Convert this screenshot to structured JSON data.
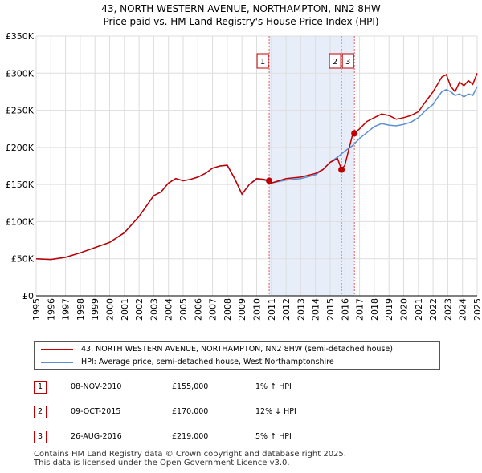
{
  "header": {
    "title_line1": "43, NORTH WESTERN AVENUE, NORTHAMPTON, NN2 8HW",
    "title_line2": "Price paid vs. HM Land Registry's House Price Index (HPI)"
  },
  "colors": {
    "price_line": "#c00000",
    "hpi_line": "#5b8fd1",
    "shade": "#e8eef9",
    "marker_line": "#e06060",
    "grid": "#dddddd"
  },
  "chart_data": {
    "type": "line",
    "xlim": [
      1995,
      2025
    ],
    "ylim": [
      0,
      350000
    ],
    "x_ticks": [
      1995,
      1996,
      1997,
      1998,
      1999,
      2000,
      2001,
      2002,
      2003,
      2004,
      2005,
      2006,
      2007,
      2008,
      2009,
      2010,
      2011,
      2012,
      2013,
      2014,
      2015,
      2016,
      2017,
      2018,
      2019,
      2020,
      2021,
      2022,
      2023,
      2024,
      2025
    ],
    "x_tick_labels": [
      "1995",
      "1996",
      "1997",
      "1998",
      "1999",
      "2000",
      "2001",
      "2002",
      "2003",
      "2004",
      "2005",
      "2006",
      "2007",
      "2008",
      "2009",
      "2010",
      "2011",
      "2012",
      "2013",
      "2014",
      "2015",
      "2016",
      "2017",
      "2018",
      "2019",
      "2020",
      "2021",
      "2022",
      "2023",
      "2024",
      "2025"
    ],
    "y_ticks": [
      0,
      50000,
      100000,
      150000,
      200000,
      250000,
      300000,
      350000
    ],
    "y_tick_labels": [
      "£0",
      "£50K",
      "£100K",
      "£150K",
      "£200K",
      "£250K",
      "£300K",
      "£350K"
    ],
    "grid": true,
    "shaded_region": [
      2010.85,
      2016.65
    ],
    "series": [
      {
        "name": "43, NORTH WESTERN AVENUE, NORTHAMPTON, NN2 8HW (semi-detached house)",
        "x": [
          1995,
          1996,
          1997,
          1998,
          1999,
          2000,
          2001,
          2002,
          2003,
          2003.5,
          2004,
          2004.5,
          2005,
          2005.5,
          2006,
          2006.5,
          2007,
          2007.5,
          2008,
          2008.5,
          2009,
          2009.5,
          2010,
          2010.5,
          2010.85,
          2011,
          2011.5,
          2012,
          2013,
          2014,
          2014.5,
          2015,
          2015.5,
          2015.77,
          2016,
          2016.3,
          2016.5,
          2016.65,
          2017,
          2017.5,
          2018,
          2018.5,
          2019,
          2019.5,
          2020,
          2020.5,
          2021,
          2021.5,
          2022,
          2022.3,
          2022.6,
          2022.9,
          2023.2,
          2023.5,
          2023.8,
          2024.1,
          2024.4,
          2024.7,
          2025
        ],
        "values": [
          50000,
          49000,
          52000,
          58000,
          65000,
          72000,
          85000,
          107000,
          135000,
          140000,
          152000,
          158000,
          155000,
          157000,
          160000,
          165000,
          172000,
          175000,
          176000,
          158000,
          137000,
          150000,
          158000,
          157000,
          155000,
          152000,
          155000,
          158000,
          160000,
          165000,
          170000,
          180000,
          185000,
          170000,
          176000,
          200000,
          215000,
          219000,
          225000,
          235000,
          240000,
          245000,
          243000,
          238000,
          240000,
          243000,
          248000,
          262000,
          275000,
          285000,
          295000,
          298000,
          282000,
          275000,
          288000,
          283000,
          290000,
          285000,
          300000
        ]
      },
      {
        "name": "HPI: Average price, semi-detached house, West Northamptonshire",
        "x": [
          1995,
          1996,
          1997,
          1998,
          1999,
          2000,
          2001,
          2002,
          2003,
          2003.5,
          2004,
          2004.5,
          2005,
          2005.5,
          2006,
          2006.5,
          2007,
          2007.5,
          2008,
          2008.5,
          2009,
          2009.5,
          2010,
          2010.5,
          2011,
          2011.5,
          2012,
          2013,
          2014,
          2014.5,
          2015,
          2015.5,
          2016,
          2016.5,
          2017,
          2017.5,
          2018,
          2018.5,
          2019,
          2019.5,
          2020,
          2020.5,
          2021,
          2021.5,
          2022,
          2022.3,
          2022.6,
          2022.9,
          2023.2,
          2023.5,
          2023.8,
          2024.1,
          2024.4,
          2024.7,
          2025
        ],
        "values": [
          50000,
          49000,
          52000,
          58000,
          65000,
          72000,
          85000,
          107000,
          135000,
          140000,
          152000,
          158000,
          155000,
          157000,
          160000,
          165000,
          172000,
          175000,
          176000,
          158000,
          137000,
          150000,
          157000,
          156000,
          152000,
          154000,
          156000,
          158000,
          163000,
          170000,
          180000,
          187000,
          195000,
          202000,
          212000,
          220000,
          228000,
          232000,
          230000,
          229000,
          231000,
          234000,
          240000,
          250000,
          258000,
          267000,
          275000,
          278000,
          275000,
          270000,
          272000,
          268000,
          272000,
          270000,
          282000
        ]
      }
    ],
    "sales": [
      {
        "label": "1",
        "x": 2010.85,
        "price": 155000
      },
      {
        "label": "2",
        "x": 2015.77,
        "price": 170000
      },
      {
        "label": "3",
        "x": 2016.65,
        "price": 219000
      }
    ]
  },
  "legend": {
    "price_label": "43, NORTH WESTERN AVENUE, NORTHAMPTON, NN2 8HW (semi-detached house)",
    "hpi_label": "HPI: Average price, semi-detached house, West Northamptonshire"
  },
  "transactions": [
    {
      "num": "1",
      "date": "08-NOV-2010",
      "price": "£155,000",
      "hpi": "1% ↑ HPI"
    },
    {
      "num": "2",
      "date": "09-OCT-2015",
      "price": "£170,000",
      "hpi": "12% ↓ HPI"
    },
    {
      "num": "3",
      "date": "26-AUG-2016",
      "price": "£219,000",
      "hpi": "5% ↑ HPI"
    }
  ],
  "footer": {
    "line1": "Contains HM Land Registry data © Crown copyright and database right 2025.",
    "line2": "This data is licensed under the Open Government Licence v3.0."
  }
}
